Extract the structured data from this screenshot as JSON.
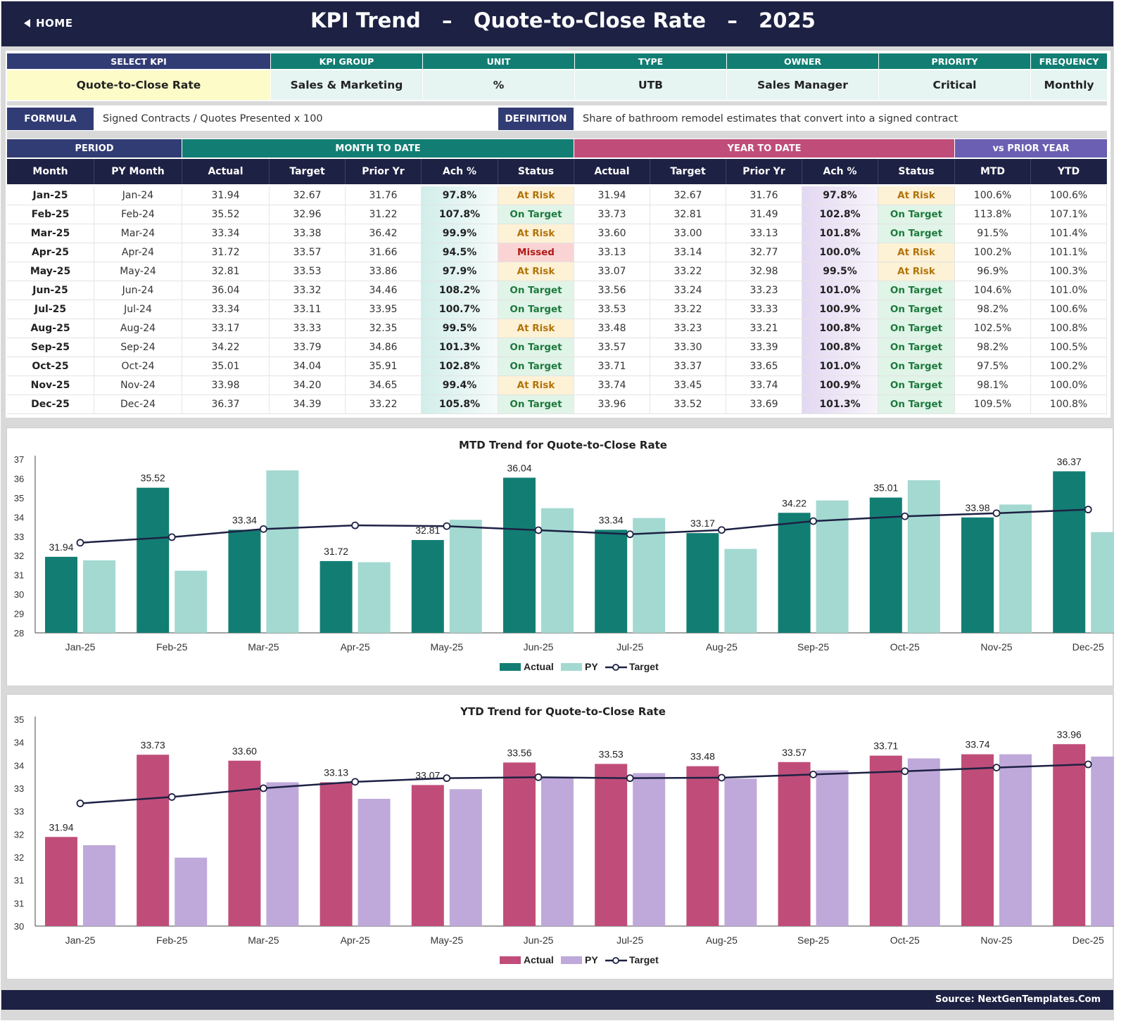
{
  "header": {
    "home_label": "HOME",
    "title": "KPI Trend   –   Quote-to-Close Rate   –   2025"
  },
  "kpi_info": {
    "headers": [
      "SELECT KPI",
      "KPI GROUP",
      "UNIT",
      "TYPE",
      "OWNER",
      "PRIORITY",
      "FREQUENCY"
    ],
    "values": [
      "Quote-to-Close Rate",
      "Sales & Marketing",
      "%",
      "UTB",
      "Sales Manager",
      "Critical",
      "Monthly"
    ]
  },
  "formula": {
    "label": "FORMULA",
    "text": "Signed Contracts / Quotes Presented x 100"
  },
  "definition": {
    "label": "DEFINITION",
    "text": "Share of bathroom remodel estimates that convert into a signed contract"
  },
  "table": {
    "group_headers": [
      "PERIOD",
      "MONTH TO DATE",
      "YEAR TO DATE",
      "vs PRIOR YEAR"
    ],
    "columns": [
      "Month",
      "PY Month",
      "Actual",
      "Target",
      "Prior Yr",
      "Ach %",
      "Status",
      "Actual",
      "Target",
      "Prior Yr",
      "Ach %",
      "Status",
      "MTD",
      "YTD"
    ],
    "rows": [
      [
        "Jan-25",
        "Jan-24",
        "31.94",
        "32.67",
        "31.76",
        "97.8%",
        "At Risk",
        "31.94",
        "32.67",
        "31.76",
        "97.8%",
        "At Risk",
        "100.6%",
        "100.6%"
      ],
      [
        "Feb-25",
        "Feb-24",
        "35.52",
        "32.96",
        "31.22",
        "107.8%",
        "On Target",
        "33.73",
        "32.81",
        "31.49",
        "102.8%",
        "On Target",
        "113.8%",
        "107.1%"
      ],
      [
        "Mar-25",
        "Mar-24",
        "33.34",
        "33.38",
        "36.42",
        "99.9%",
        "At Risk",
        "33.60",
        "33.00",
        "33.13",
        "101.8%",
        "On Target",
        "91.5%",
        "101.4%"
      ],
      [
        "Apr-25",
        "Apr-24",
        "31.72",
        "33.57",
        "31.66",
        "94.5%",
        "Missed",
        "33.13",
        "33.14",
        "32.77",
        "100.0%",
        "At Risk",
        "100.2%",
        "101.1%"
      ],
      [
        "May-25",
        "May-24",
        "32.81",
        "33.53",
        "33.86",
        "97.9%",
        "At Risk",
        "33.07",
        "33.22",
        "32.98",
        "99.5%",
        "At Risk",
        "96.9%",
        "100.3%"
      ],
      [
        "Jun-25",
        "Jun-24",
        "36.04",
        "33.32",
        "34.46",
        "108.2%",
        "On Target",
        "33.56",
        "33.24",
        "33.23",
        "101.0%",
        "On Target",
        "104.6%",
        "101.0%"
      ],
      [
        "Jul-25",
        "Jul-24",
        "33.34",
        "33.11",
        "33.95",
        "100.7%",
        "On Target",
        "33.53",
        "33.22",
        "33.33",
        "100.9%",
        "On Target",
        "98.2%",
        "100.6%"
      ],
      [
        "Aug-25",
        "Aug-24",
        "33.17",
        "33.33",
        "32.35",
        "99.5%",
        "At Risk",
        "33.48",
        "33.23",
        "33.21",
        "100.8%",
        "On Target",
        "102.5%",
        "100.8%"
      ],
      [
        "Sep-25",
        "Sep-24",
        "34.22",
        "33.79",
        "34.86",
        "101.3%",
        "On Target",
        "33.57",
        "33.30",
        "33.39",
        "100.8%",
        "On Target",
        "98.2%",
        "100.5%"
      ],
      [
        "Oct-25",
        "Oct-24",
        "35.01",
        "34.04",
        "35.91",
        "102.8%",
        "On Target",
        "33.71",
        "33.37",
        "33.65",
        "101.0%",
        "On Target",
        "97.5%",
        "100.2%"
      ],
      [
        "Nov-25",
        "Nov-24",
        "33.98",
        "34.20",
        "34.65",
        "99.4%",
        "At Risk",
        "33.74",
        "33.45",
        "33.74",
        "100.9%",
        "On Target",
        "98.1%",
        "100.0%"
      ],
      [
        "Dec-25",
        "Dec-24",
        "36.37",
        "34.39",
        "33.22",
        "105.8%",
        "On Target",
        "33.96",
        "33.52",
        "33.69",
        "101.3%",
        "On Target",
        "109.5%",
        "100.8%"
      ]
    ]
  },
  "colors": {
    "navy": "#1d2143",
    "teal": "#127e73",
    "teal_light": "#a3d9d1",
    "pink": "#c04d79",
    "lavender": "#bfa9da",
    "line": "#1d2143"
  },
  "chart_data": [
    {
      "type": "bar",
      "title": "MTD Trend for Quote-to-Close Rate",
      "categories": [
        "Jan-25",
        "Feb-25",
        "Mar-25",
        "Apr-25",
        "May-25",
        "Jun-25",
        "Jul-25",
        "Aug-25",
        "Sep-25",
        "Oct-25",
        "Nov-25",
        "Dec-25"
      ],
      "series": [
        {
          "name": "Actual",
          "values": [
            31.94,
            35.52,
            33.34,
            31.72,
            32.81,
            36.04,
            33.34,
            33.17,
            34.22,
            35.01,
            33.98,
            36.37
          ]
        },
        {
          "name": "PY",
          "values": [
            31.76,
            31.22,
            36.42,
            31.66,
            33.86,
            34.46,
            33.95,
            32.35,
            34.86,
            35.91,
            34.65,
            33.22
          ]
        },
        {
          "name": "Target",
          "type": "line",
          "values": [
            32.67,
            32.96,
            33.38,
            33.57,
            33.53,
            33.32,
            33.11,
            33.33,
            33.79,
            34.04,
            34.2,
            34.39
          ]
        }
      ],
      "data_labels": [
        "31.94",
        "35.52",
        "33.34",
        "31.72",
        "32.81",
        "36.04",
        "33.34",
        "33.17",
        "34.22",
        "35.01",
        "33.98",
        "36.37"
      ],
      "yticks": [
        "28",
        "29",
        "30",
        "31",
        "32",
        "33",
        "34",
        "35",
        "36",
        "37"
      ],
      "ylim": [
        28,
        37
      ],
      "legend": [
        "Actual",
        "PY",
        "Target"
      ],
      "legend_position": "bottom"
    },
    {
      "type": "bar",
      "title": "YTD Trend for Quote-to-Close Rate",
      "categories": [
        "Jan-25",
        "Feb-25",
        "Mar-25",
        "Apr-25",
        "May-25",
        "Jun-25",
        "Jul-25",
        "Aug-25",
        "Sep-25",
        "Oct-25",
        "Nov-25",
        "Dec-25"
      ],
      "series": [
        {
          "name": "Actual",
          "values": [
            31.94,
            33.73,
            33.6,
            33.13,
            33.07,
            33.56,
            33.53,
            33.48,
            33.57,
            33.71,
            33.74,
            33.96
          ]
        },
        {
          "name": "PY",
          "values": [
            31.76,
            31.49,
            33.13,
            32.77,
            32.98,
            33.23,
            33.33,
            33.21,
            33.39,
            33.65,
            33.74,
            33.69
          ]
        },
        {
          "name": "Target",
          "type": "line",
          "values": [
            32.67,
            32.81,
            33.0,
            33.14,
            33.22,
            33.24,
            33.22,
            33.23,
            33.3,
            33.37,
            33.45,
            33.52
          ]
        }
      ],
      "data_labels": [
        "31.94",
        "33.73",
        "33.60",
        "33.13",
        "33.07",
        "33.56",
        "33.53",
        "33.48",
        "33.57",
        "33.71",
        "33.74",
        "33.96"
      ],
      "yticks": [
        "30",
        "31",
        "31",
        "32",
        "32",
        "33",
        "33",
        "34",
        "34",
        "35"
      ],
      "ylim": [
        30,
        34.5
      ],
      "legend": [
        "Actual",
        "PY",
        "Target"
      ],
      "legend_position": "bottom"
    }
  ],
  "footer": {
    "source": "Source: NextGenTemplates.Com"
  }
}
